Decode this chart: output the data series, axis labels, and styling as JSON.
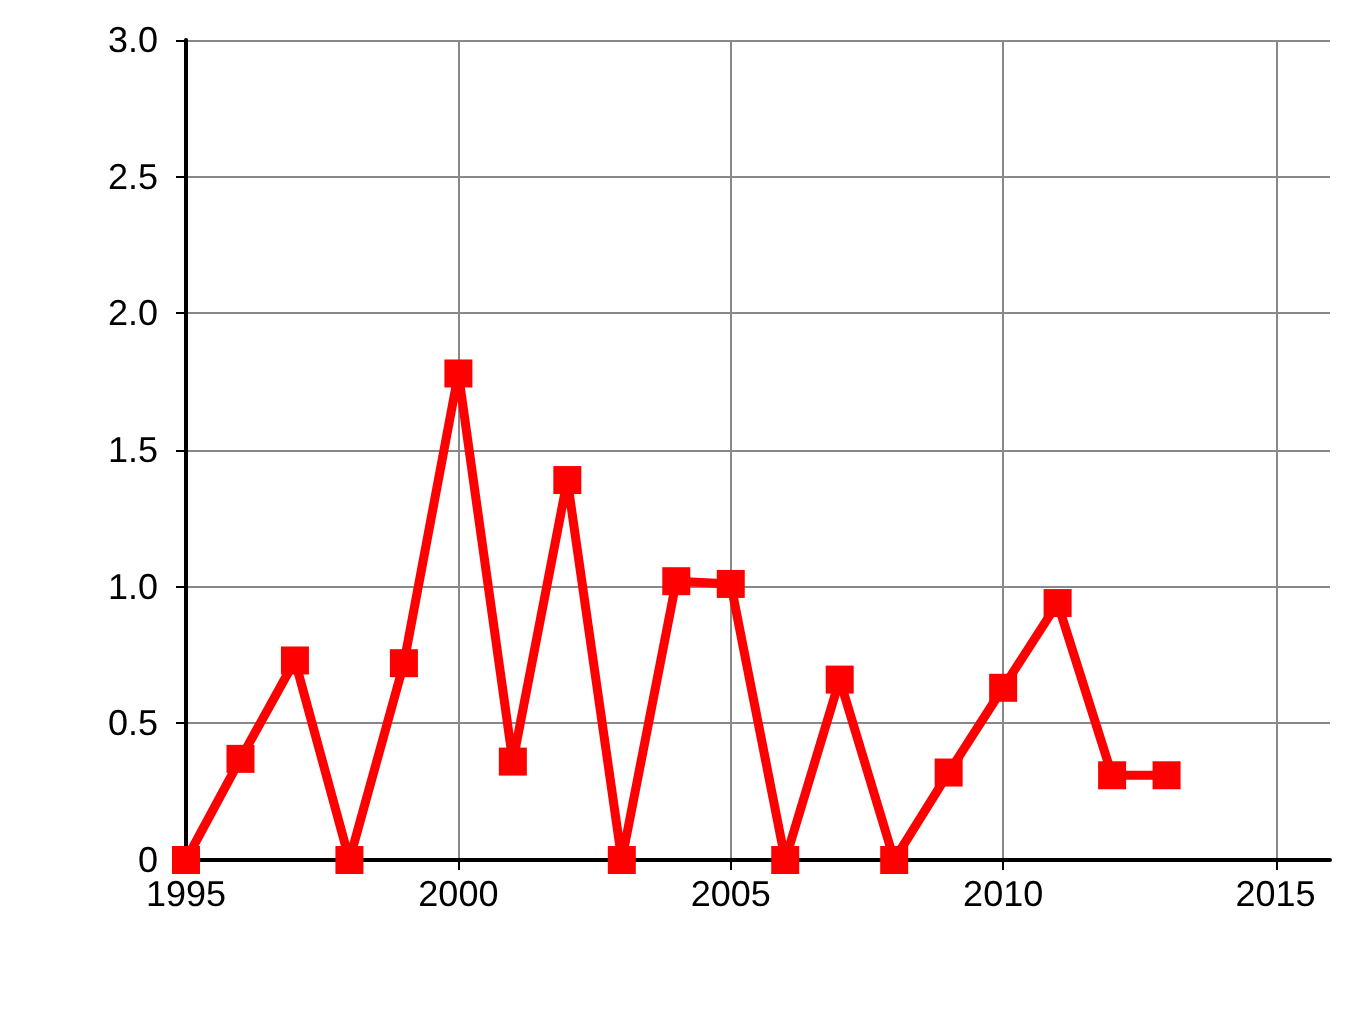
{
  "chart_data": {
    "type": "line",
    "x": [
      1995,
      1996,
      1997,
      1998,
      1999,
      2000,
      2001,
      2002,
      2003,
      2004,
      2005,
      2006,
      2007,
      2008,
      2009,
      2010,
      2011,
      2012,
      2013
    ],
    "series": [
      {
        "color": "#ff0000",
        "values": [
          0,
          0.37,
          0.73,
          0,
          0.72,
          1.78,
          0.36,
          1.39,
          0,
          1.02,
          1.01,
          0,
          0.66,
          0,
          0.32,
          0.63,
          0.94,
          0.31,
          0.31
        ]
      }
    ],
    "xlim": [
      1995,
      2016
    ],
    "xticks": [
      1995,
      2000,
      2005,
      2010,
      2015
    ],
    "ylim": [
      0,
      3
    ],
    "yticks": [
      0,
      0.5,
      {
        "value": 1,
        "label": "1.0"
      },
      {
        "value": 1.5,
        "label": "1.5"
      },
      {
        "value": 2,
        "label": "2.0"
      },
      {
        "value": 2.5,
        "label": "2.5"
      },
      {
        "value": 3,
        "label": "3.0"
      }
    ],
    "grid": true,
    "marker": "square",
    "line_style": "solid"
  }
}
